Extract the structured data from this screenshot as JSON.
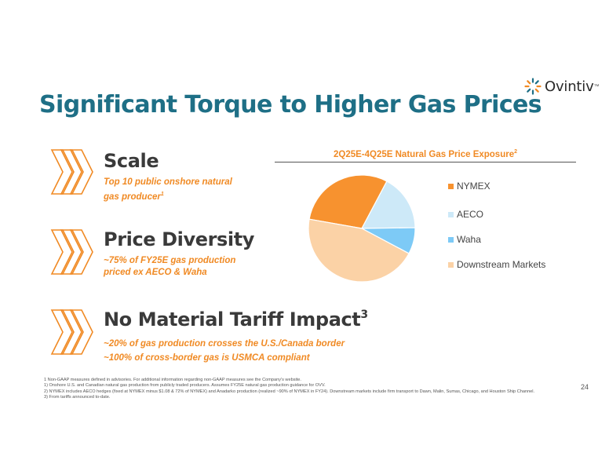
{
  "logo": {
    "text": "Ovintiv",
    "trademark": "™"
  },
  "title": "Significant Torque to Higher Gas Prices",
  "blocks": [
    {
      "title": "Scale",
      "sup": "",
      "subtitle_lines": [
        "Top 10 public onshore natural",
        "gas producer"
      ],
      "subtitle_sup": "1"
    },
    {
      "title": "Price Diversity",
      "sup": "",
      "subtitle_lines": [
        "~75% of FY25E gas production",
        "priced ex AECO & Waha"
      ],
      "subtitle_sup": ""
    },
    {
      "title": "No Material Tariff Impact",
      "sup": "3",
      "subtitle_lines": [
        "~20% of gas production crosses the U.S./Canada border",
        "~100% of cross-border gas is USMCA compliant"
      ],
      "subtitle_sup": ""
    }
  ],
  "chart_data": {
    "type": "pie",
    "title": "2Q25E-4Q25E Natural Gas Price Exposure",
    "title_sup": "2",
    "legend_position": "right",
    "series": [
      {
        "name": "NYMEX",
        "value": 30,
        "color": "#f7922f"
      },
      {
        "name": "AECO",
        "value": 17,
        "color": "#cde9f8"
      },
      {
        "name": "Waha",
        "value": 8,
        "color": "#7dcaf6"
      },
      {
        "name": "Downstream Markets",
        "value": 45,
        "color": "#fbd2a6"
      }
    ]
  },
  "footnotes": [
    "1 Non-GAAP measures defined in advisories. For additional information regarding non-GAAP measures see the Company's website.",
    "1) Onshore U.S. and Canadian natural gas production from publicly traded producers. Assumes FY25E natural gas production guidance for OVV.",
    "2) NYMEX includes AECO hedges (fixed at NYMEX minus $1.08 & 72% of NYMEX) and Anadarko production (realized ~90% of NYMEX in FY24). Downstream markets include firm transport to Dawn, Malin, Sumas, Chicago, and Houston Ship Channel.",
    "3) From tariffs announced to-date."
  ],
  "page_number": "24",
  "colors": {
    "title": "#1e6f86",
    "accent": "#f08a24",
    "chevron": "#f08a24"
  }
}
